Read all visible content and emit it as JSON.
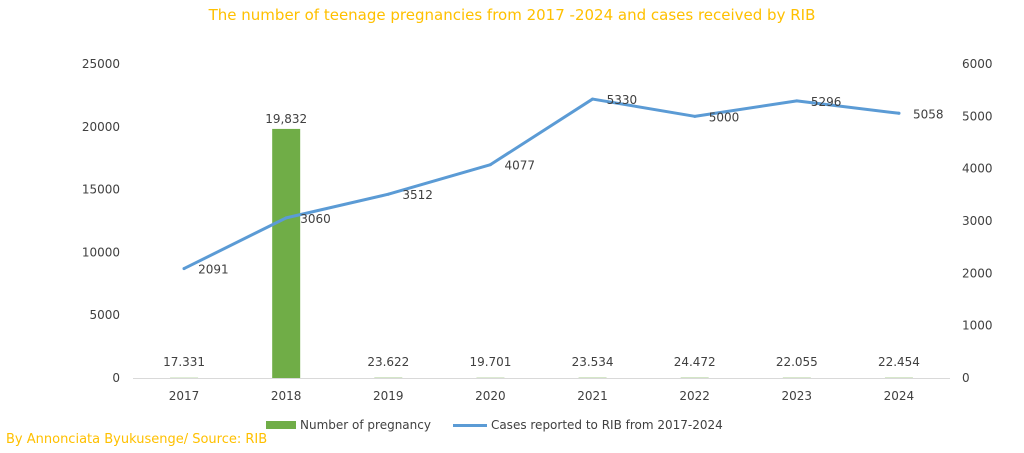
{
  "chart_data": {
    "type": "bar+line",
    "title": "The number of teenage pregnancies from 2017 -2024 and cases received by RIB",
    "credit": "By Annonciata Byukusenge/ Source: RIB",
    "categories": [
      "2017",
      "2018",
      "2019",
      "2020",
      "2021",
      "2022",
      "2023",
      "2024"
    ],
    "bar_series": {
      "name": "Number of pregnancy",
      "values": [
        17.331,
        19832,
        23.622,
        19.701,
        23.534,
        24.472,
        22.055,
        22.454
      ],
      "labels": [
        "17.331",
        "19,832",
        "23.622",
        "19.701",
        "23.534",
        "24.472",
        "22.055",
        "22.454"
      ],
      "axis": "left",
      "color": "#70AD47"
    },
    "line_series": {
      "name": "Cases reported to RIB from 2017-2024",
      "values": [
        2091,
        3060,
        3512,
        4077,
        5330,
        5000,
        5296,
        5058
      ],
      "labels": [
        "2091",
        "3060",
        "3512",
        "4077",
        "5330",
        "5000",
        "5296",
        "5058"
      ],
      "axis": "right",
      "color": "#5B9BD5"
    },
    "left_axis": {
      "ylim": [
        0,
        25000
      ],
      "ticks": [
        0,
        5000,
        10000,
        15000,
        20000,
        25000
      ]
    },
    "right_axis": {
      "ylim": [
        0,
        6000
      ],
      "ticks": [
        0,
        1000,
        2000,
        3000,
        4000,
        5000,
        6000
      ]
    },
    "grid": false,
    "legend_position": "bottom",
    "title_color": "#FFC000",
    "credit_color": "#FFC000"
  }
}
